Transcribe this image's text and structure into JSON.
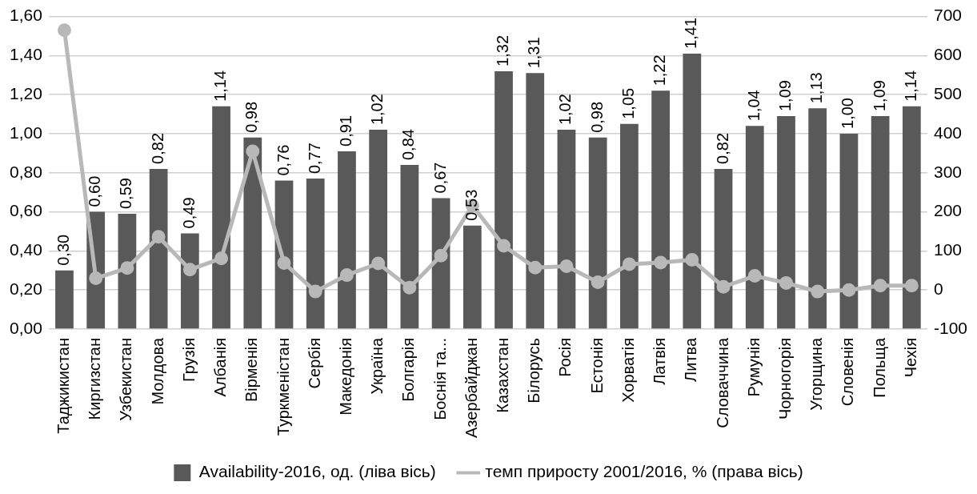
{
  "chart_data": {
    "type": "bar",
    "categories": [
      "Таджикистан",
      "Киргизстан",
      "Узбекистан",
      "Молдова",
      "Грузія",
      "Албанія",
      "Вірменія",
      "Туркменістан",
      "Сербія",
      "Македонія",
      "Україна",
      "Болгарія",
      "Боснія та...",
      "Азербайджан",
      "Казахстан",
      "Білорусь",
      "Росія",
      "Естонія",
      "Хорватія",
      "Латвія",
      "Литва",
      "Словаччина",
      "Румунія",
      "Чорногорія",
      "Угорщина",
      "Словенія",
      "Польща",
      "Чехія"
    ],
    "series": [
      {
        "name": "Availability-2016, од. (ліва вісь)",
        "color": "#595959",
        "values": [
          0.3,
          0.6,
          0.59,
          0.82,
          0.49,
          1.14,
          0.98,
          0.76,
          0.77,
          0.91,
          1.02,
          0.84,
          0.67,
          0.53,
          1.32,
          1.31,
          1.02,
          0.98,
          1.05,
          1.22,
          1.41,
          0.82,
          1.04,
          1.09,
          1.13,
          1.0,
          1.09,
          1.14
        ],
        "value_labels": [
          "0,30",
          "0,60",
          "0,59",
          "0,82",
          "0,49",
          "1,14",
          "0,98",
          "0,76",
          "0,77",
          "0,91",
          "1,02",
          "0,84",
          "0,67",
          "0,53",
          "1,32",
          "1,31",
          "1,02",
          "0,98",
          "1,05",
          "1,22",
          "1,41",
          "0,82",
          "1,04",
          "1,09",
          "1,13",
          "1,00",
          "1,09",
          "1,14"
        ]
      },
      {
        "name": "темп приросту 2001/2016, % (права вісь)",
        "type": "line",
        "axis": "y2",
        "color": "#b8b8b8",
        "values": [
          665,
          30,
          56,
          136,
          52,
          81,
          355,
          69,
          -4,
          38,
          68,
          6,
          88,
          216,
          113,
          57,
          61,
          20,
          66,
          70,
          77,
          8,
          36,
          18,
          -4,
          0,
          11,
          11
        ]
      }
    ],
    "ylim": [
      0,
      1.6
    ],
    "yticks": [
      {
        "value": 0,
        "label": "0,00"
      },
      {
        "value": 0.2,
        "label": "0,20"
      },
      {
        "value": 0.4,
        "label": "0,40"
      },
      {
        "value": 0.6,
        "label": "0,60"
      },
      {
        "value": 0.8,
        "label": "0,80"
      },
      {
        "value": 1.0,
        "label": "1,00"
      },
      {
        "value": 1.2,
        "label": "1,20"
      },
      {
        "value": 1.4,
        "label": "1,40"
      },
      {
        "value": 1.6,
        "label": "1,60"
      }
    ],
    "y2lim": [
      -100,
      700
    ],
    "y2ticks": [
      -100,
      0,
      100,
      200,
      300,
      400,
      500,
      600,
      700
    ],
    "grid": "y",
    "legend": "bottom",
    "marker": "circle",
    "line_style": "solid"
  }
}
